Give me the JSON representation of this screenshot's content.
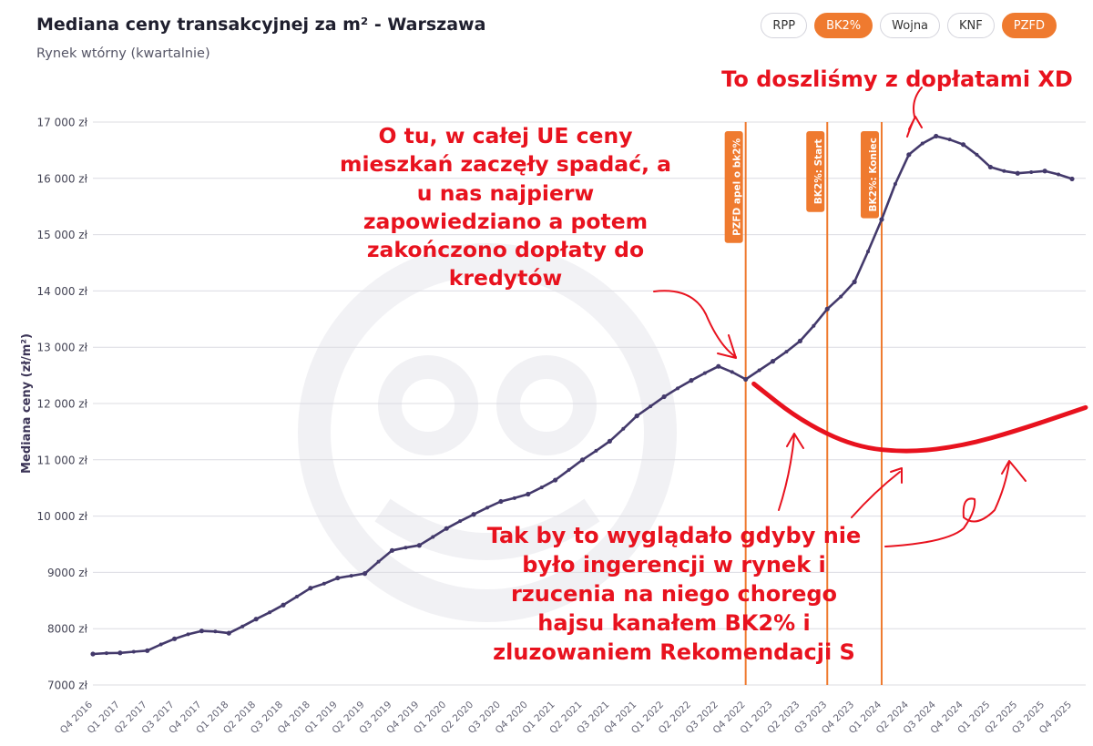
{
  "header": {
    "title": "Mediana ceny transakcyjnej za m² - Warszawa",
    "subtitle": "Rynek wtórny (kwartalnie)"
  },
  "filters": [
    {
      "label": "RPP",
      "active": false
    },
    {
      "label": "BK2%",
      "active": true
    },
    {
      "label": "Wojna",
      "active": false
    },
    {
      "label": "KNF",
      "active": false
    },
    {
      "label": "PZFD",
      "active": true
    }
  ],
  "colors": {
    "line": "#43396b",
    "event_line": "#ef7a2f",
    "annotation": "#e8121e",
    "grid": "#dcdce2"
  },
  "chart_data": {
    "type": "line",
    "ylabel": "Mediana ceny (zł/m²)",
    "ylim": [
      7000,
      17000
    ],
    "yticks": [
      "7000 zł",
      "8000 zł",
      "9000 zł",
      "10 000 zł",
      "11 000 zł",
      "12 000 zł",
      "13 000 zł",
      "14 000 zł",
      "15 000 zł",
      "16 000 zł",
      "17 000 zł"
    ],
    "grid": true,
    "categories": [
      "Q4 2016",
      "Q1 2017",
      "Q2 2017",
      "Q3 2017",
      "Q4 2017",
      "Q1 2018",
      "Q2 2018",
      "Q3 2018",
      "Q4 2018",
      "Q1 2019",
      "Q2 2019",
      "Q3 2019",
      "Q4 2019",
      "Q1 2020",
      "Q2 2020",
      "Q3 2020",
      "Q4 2020",
      "Q1 2021",
      "Q2 2021",
      "Q3 2021",
      "Q4 2021",
      "Q1 2022",
      "Q2 2022",
      "Q3 2022",
      "Q4 2022",
      "Q1 2023",
      "Q2 2023",
      "Q3 2023",
      "Q4 2023",
      "Q1 2024",
      "Q2 2024",
      "Q3 2024",
      "Q4 2024",
      "Q1 2025",
      "Q2 2025",
      "Q3 2025",
      "Q4 2025"
    ],
    "series": [
      {
        "values": [
          7550,
          7570,
          7610,
          7820,
          7960,
          7920,
          8170,
          8420,
          8720,
          8900,
          8980,
          9390,
          9480,
          9780,
          10030,
          10260,
          10390,
          10640,
          11000,
          11330,
          11780,
          12120,
          12410,
          12660,
          12430,
          12750,
          13110,
          13680,
          14160,
          15270,
          16420,
          16750,
          16600,
          16200,
          16090,
          16130,
          15990
        ],
        "points": [
          [
            0,
            7550
          ],
          [
            0.5,
            7565
          ],
          [
            1,
            7570
          ],
          [
            1.5,
            7590
          ],
          [
            2,
            7610
          ],
          [
            2.5,
            7720
          ],
          [
            3,
            7820
          ],
          [
            3.5,
            7900
          ],
          [
            4,
            7960
          ],
          [
            4.5,
            7950
          ],
          [
            5,
            7920
          ],
          [
            5.5,
            8040
          ],
          [
            6,
            8170
          ],
          [
            6.5,
            8290
          ],
          [
            7,
            8420
          ],
          [
            7.5,
            8570
          ],
          [
            8,
            8720
          ],
          [
            8.5,
            8800
          ],
          [
            9,
            8900
          ],
          [
            9.5,
            8940
          ],
          [
            10,
            8980
          ],
          [
            10.5,
            9190
          ],
          [
            11,
            9390
          ],
          [
            11.5,
            9440
          ],
          [
            12,
            9480
          ],
          [
            12.5,
            9630
          ],
          [
            13,
            9780
          ],
          [
            13.5,
            9910
          ],
          [
            14,
            10030
          ],
          [
            14.5,
            10150
          ],
          [
            15,
            10260
          ],
          [
            15.5,
            10320
          ],
          [
            16,
            10390
          ],
          [
            16.5,
            10510
          ],
          [
            17,
            10640
          ],
          [
            17.5,
            10820
          ],
          [
            18,
            11000
          ],
          [
            18.5,
            11160
          ],
          [
            19,
            11330
          ],
          [
            19.5,
            11550
          ],
          [
            20,
            11780
          ],
          [
            20.5,
            11950
          ],
          [
            21,
            12120
          ],
          [
            21.5,
            12270
          ],
          [
            22,
            12410
          ],
          [
            22.5,
            12540
          ],
          [
            23,
            12660
          ],
          [
            23.5,
            12560
          ],
          [
            24,
            12430
          ],
          [
            24.5,
            12590
          ],
          [
            25,
            12750
          ],
          [
            25.5,
            12920
          ],
          [
            26,
            13110
          ],
          [
            26.5,
            13380
          ],
          [
            27,
            13680
          ],
          [
            27.5,
            13900
          ],
          [
            28,
            14160
          ],
          [
            28.5,
            14700
          ],
          [
            29,
            15270
          ],
          [
            29.5,
            15900
          ],
          [
            30,
            16420
          ],
          [
            30.5,
            16620
          ],
          [
            31,
            16750
          ],
          [
            31.5,
            16690
          ],
          [
            32,
            16600
          ],
          [
            32.5,
            16420
          ],
          [
            33,
            16200
          ],
          [
            33.5,
            16130
          ],
          [
            34,
            16090
          ],
          [
            34.5,
            16110
          ],
          [
            35,
            16130
          ],
          [
            35.5,
            16070
          ],
          [
            36,
            15990
          ]
        ]
      }
    ],
    "events": [
      {
        "label": "PZFD apel o bk2%",
        "x": 24
      },
      {
        "label": "BK2%: Start",
        "x": 27
      },
      {
        "label": "BK2%: Koniec",
        "x": 29
      }
    ]
  },
  "annotations": {
    "top": "To doszliśmy z dopłatami XD",
    "left_lines": [
      "O tu, w całej UE ceny",
      "mieszkań zaczęły spadać, a",
      "u nas najpierw",
      "zapowiedziano a potem",
      "zakończono dopłaty do",
      "kredytów"
    ],
    "bottom_lines": [
      "Tak by to wyglądało gdyby nie",
      "było ingerencji w rynek i",
      "rzucenia na niego chorego",
      "hajsu kanałem BK2% i",
      "zluzowaniem Rekomendacji S"
    ],
    "hypothetical_curve": [
      {
        "x": 24.3,
        "y": 12350
      },
      {
        "x": 26,
        "y": 11700
      },
      {
        "x": 28,
        "y": 11230
      },
      {
        "x": 30,
        "y": 11130
      },
      {
        "x": 32,
        "y": 11250
      },
      {
        "x": 34,
        "y": 11520
      },
      {
        "x": 36.5,
        "y": 11930
      }
    ]
  }
}
